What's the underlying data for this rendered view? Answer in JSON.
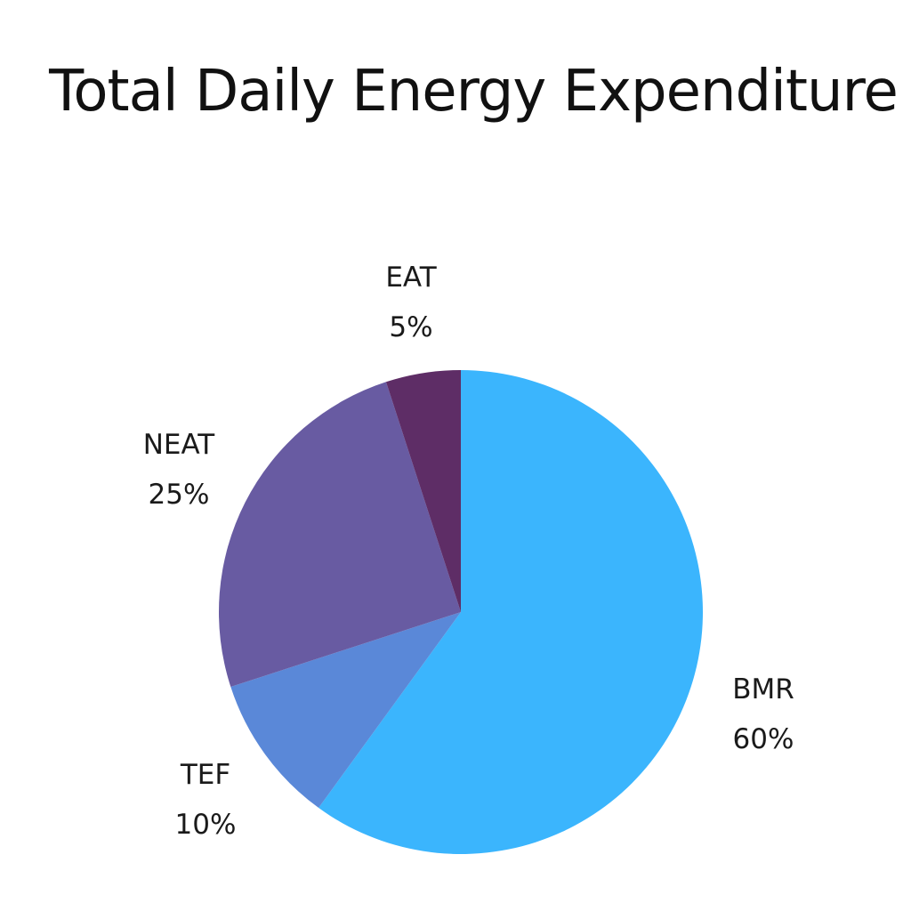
{
  "chart_data": {
    "type": "pie",
    "title": "Total Daily Energy Expenditure",
    "slices": [
      {
        "label": "BMR",
        "value": 60,
        "value_label": "60%",
        "color": "#3BB5FD"
      },
      {
        "label": "TEF",
        "value": 10,
        "value_label": "10%",
        "color": "#5A88D8"
      },
      {
        "label": "NEAT",
        "value": 25,
        "value_label": "25%",
        "color": "#685BA2"
      },
      {
        "label": "EAT",
        "value": 5,
        "value_label": "5%",
        "color": "#5E2D66"
      }
    ],
    "start_angle": "12 o'clock",
    "direction": "clockwise",
    "legend": "none"
  }
}
